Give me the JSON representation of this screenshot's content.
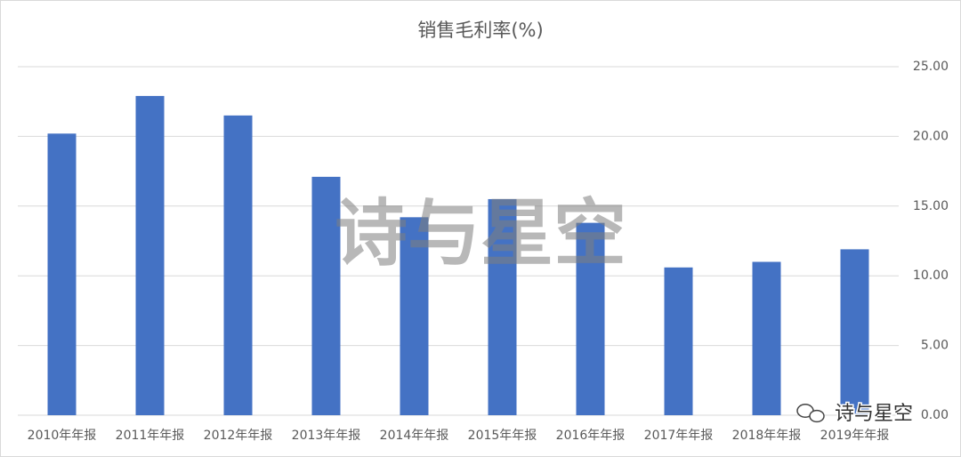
{
  "chart_data": {
    "type": "bar",
    "title": "销售毛利率(%)",
    "categories": [
      "2010年年报",
      "2011年年报",
      "2012年年报",
      "2013年年报",
      "2014年年报",
      "2015年年报",
      "2016年年报",
      "2017年年报",
      "2018年年报",
      "2019年年报"
    ],
    "values": [
      20.2,
      22.9,
      21.5,
      17.1,
      14.2,
      15.5,
      13.8,
      10.6,
      11.0,
      11.9
    ],
    "color": "#4472c4",
    "ylim": [
      0,
      25
    ],
    "yticks": [
      {
        "value": 0,
        "label": "0.00"
      },
      {
        "value": 5,
        "label": "5.00"
      },
      {
        "value": 10,
        "label": "10.00"
      },
      {
        "value": 15,
        "label": "15.00"
      },
      {
        "value": 20,
        "label": "20.00"
      },
      {
        "value": 25,
        "label": "25.00"
      }
    ],
    "grid": true,
    "watermark": "诗与星空",
    "logo": "诗与星空"
  }
}
